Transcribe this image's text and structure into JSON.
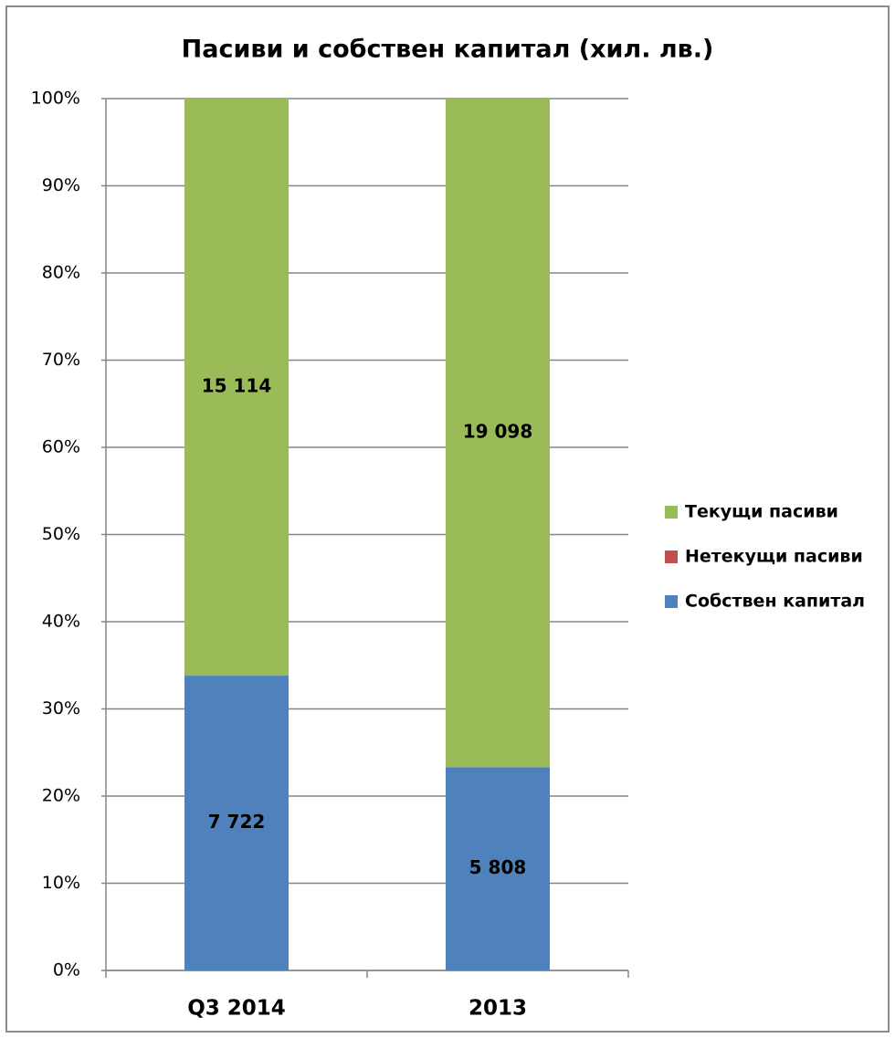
{
  "chart_data": {
    "type": "bar",
    "stacked": "percent",
    "title": "Пасиви и собствен капитал (хил. лв.)",
    "categories": [
      "Q3 2014",
      "2013"
    ],
    "series": [
      {
        "name": "Собствен капитал",
        "color": "#4f81bd",
        "values": [
          7722,
          5808
        ],
        "value_labels": [
          "7 722",
          "5 808"
        ]
      },
      {
        "name": "Нетекущи пасиви",
        "color": "#c0504d",
        "values": [
          0,
          0
        ]
      },
      {
        "name": "Текущи пасиви",
        "color": "#9bbb59",
        "values": [
          15114,
          19098
        ],
        "value_labels": [
          "15 114",
          "19 098"
        ]
      }
    ],
    "ylim": [
      0,
      100
    ],
    "yticks": [
      {
        "value": 0,
        "label": "0%"
      },
      {
        "value": 10,
        "label": "10%"
      },
      {
        "value": 20,
        "label": "20%"
      },
      {
        "value": 30,
        "label": "30%"
      },
      {
        "value": 40,
        "label": "40%"
      },
      {
        "value": 50,
        "label": "50%"
      },
      {
        "value": 60,
        "label": "60%"
      },
      {
        "value": 70,
        "label": "70%"
      },
      {
        "value": 80,
        "label": "80%"
      },
      {
        "value": 90,
        "label": "90%"
      },
      {
        "value": 100,
        "label": "100%"
      }
    ],
    "grid": true,
    "legend": "right"
  }
}
